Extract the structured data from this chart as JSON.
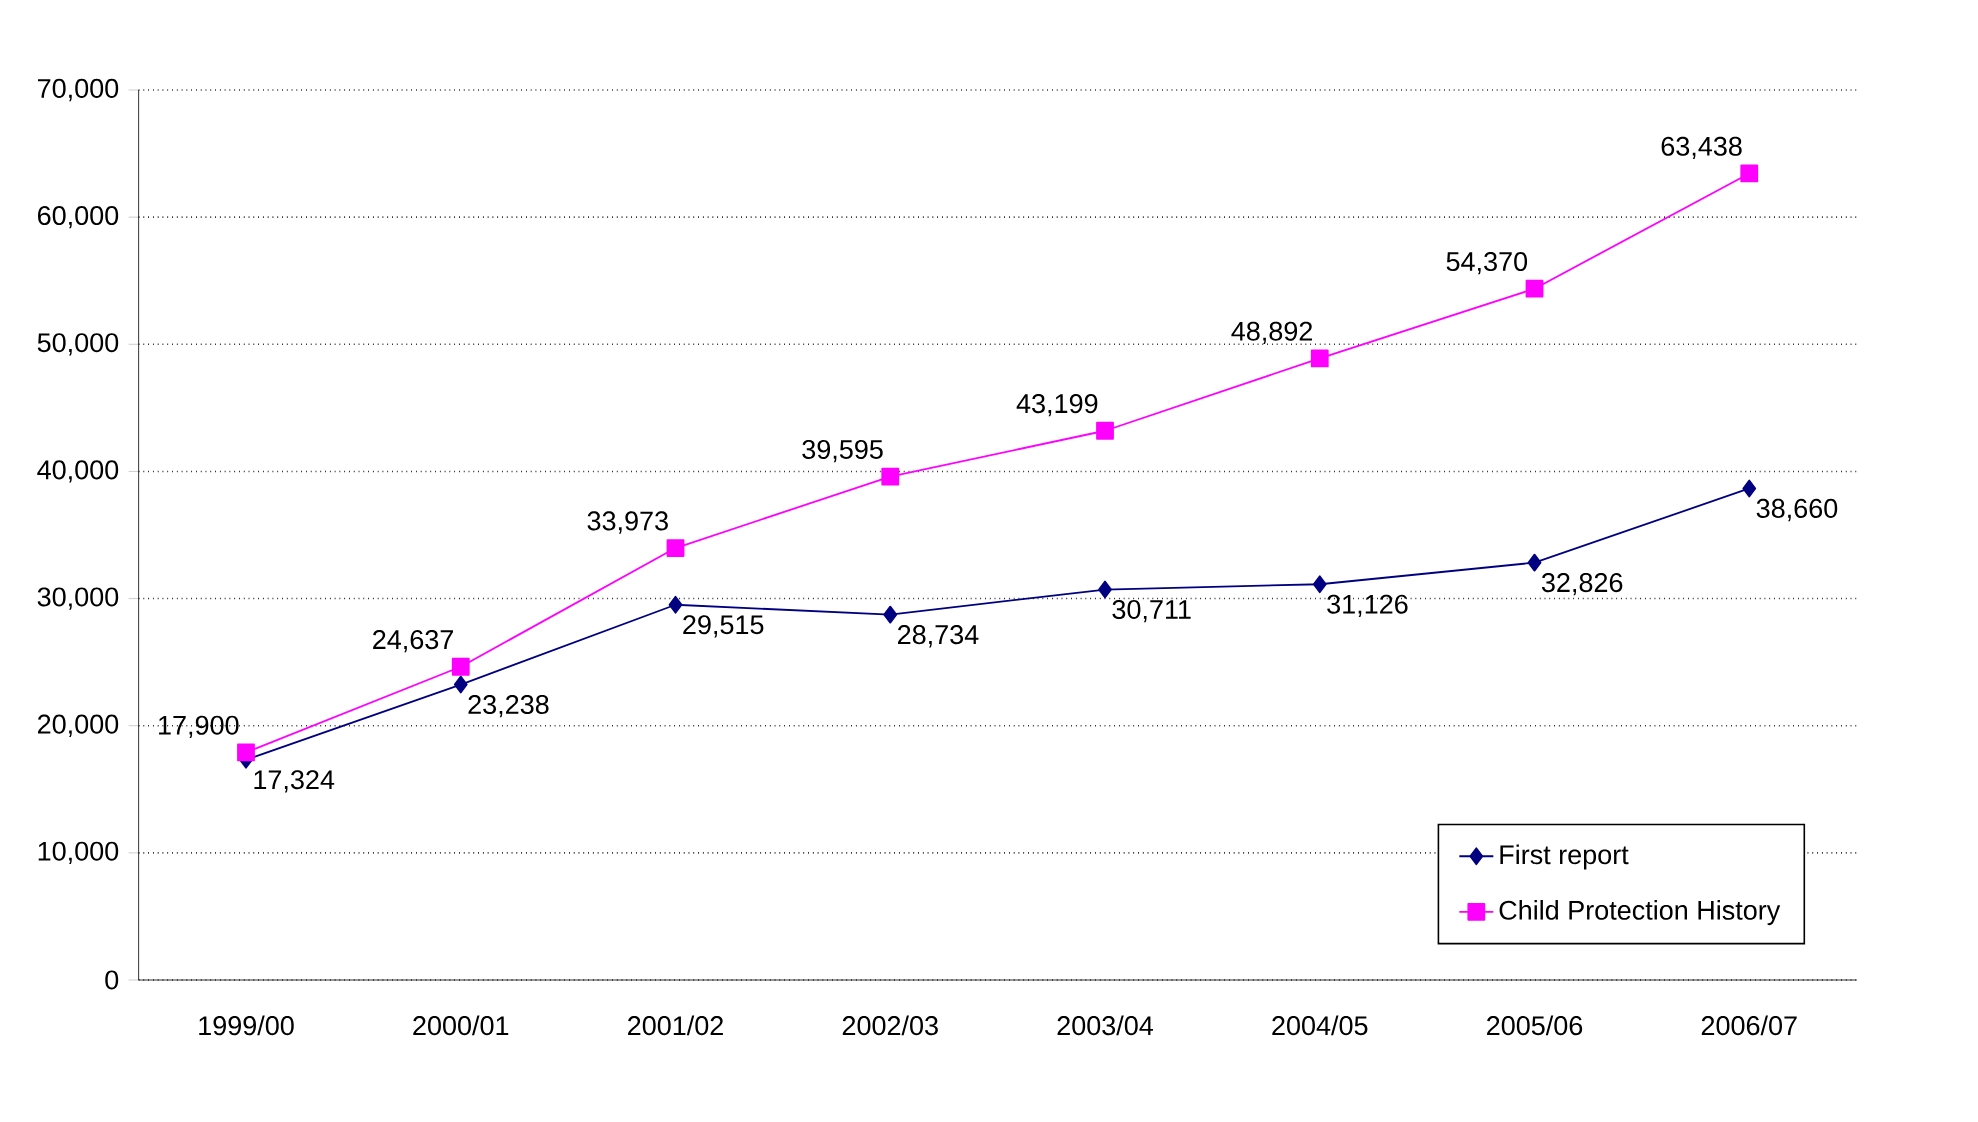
{
  "chart_data": {
    "type": "line",
    "categories": [
      "1999/00",
      "2000/01",
      "2001/02",
      "2002/03",
      "2003/04",
      "2004/05",
      "2005/06",
      "2006/07"
    ],
    "series": [
      {
        "name": "First report",
        "color": "#000080",
        "marker": "diamond",
        "values": [
          17324,
          23238,
          29515,
          28734,
          30711,
          31126,
          32826,
          38660
        ],
        "value_labels": [
          "17,324",
          "23,238",
          "29,515",
          "28,734",
          "30,711",
          "31,126",
          "32,826",
          "38,660"
        ]
      },
      {
        "name": "Child Protection History",
        "color": "#ff00ff",
        "marker": "square",
        "values": [
          17900,
          24637,
          33973,
          39595,
          43199,
          48892,
          54370,
          63438
        ],
        "value_labels": [
          "17,900",
          "24,637",
          "33,973",
          "39,595",
          "43,199",
          "48,892",
          "54,370",
          "63,438"
        ]
      }
    ],
    "ylim": [
      0,
      70000
    ],
    "yticks": [
      {
        "value": 0,
        "label": "0"
      },
      {
        "value": 10000,
        "label": "10,000"
      },
      {
        "value": 20000,
        "label": "20,000"
      },
      {
        "value": 30000,
        "label": "30,000"
      },
      {
        "value": 40000,
        "label": "40,000"
      },
      {
        "value": 50000,
        "label": "50,000"
      },
      {
        "value": 60000,
        "label": "60,000"
      },
      {
        "value": 70000,
        "label": "70,000"
      }
    ],
    "grid": "y",
    "legend": "bottom right"
  }
}
